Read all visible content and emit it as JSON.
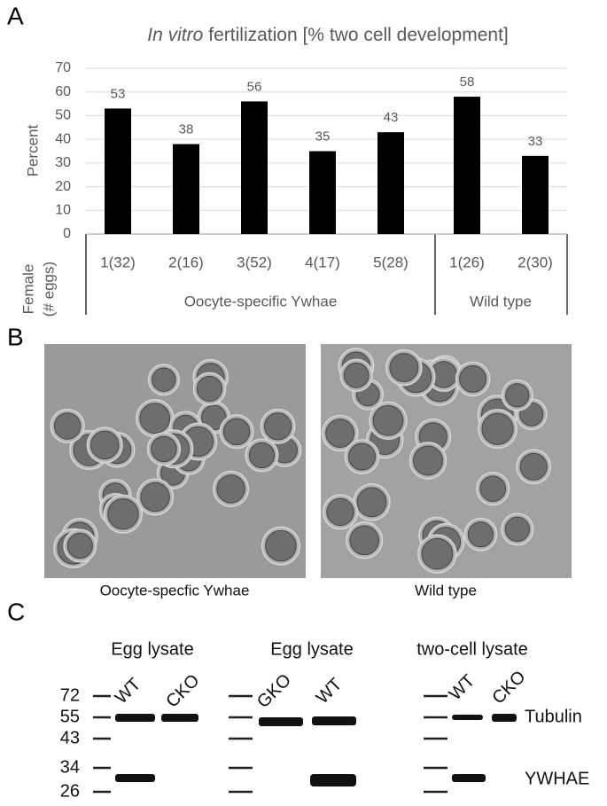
{
  "panel_labels": [
    "A",
    "B",
    "C"
  ],
  "chart_data": {
    "type": "bar",
    "title": {
      "italic": "In vitro",
      "text": "fertilization [% two cell development]"
    },
    "ylabel": "Percent",
    "xlabel": "Female",
    "xlabel_unit": "(# eggs)",
    "categories": [
      "1(32)",
      "2(16)",
      "3(52)",
      "4(17)",
      "5(28)",
      "1(26)",
      "2(30)"
    ],
    "groups": [
      "Oocyte-specific Ywhae",
      "Wild type"
    ],
    "values": [
      53,
      38,
      56,
      35,
      43,
      58,
      33
    ],
    "color": "#000000",
    "ylim": [
      0,
      70
    ],
    "yticks": [
      0,
      10,
      20,
      30,
      40,
      50,
      60,
      70
    ],
    "grid": true
  },
  "images": [
    {
      "caption": "Oocyte-specfic Ywhae"
    },
    {
      "caption": "Wild type"
    }
  ],
  "blot": {
    "panels": [
      {
        "title": "Egg lysate",
        "lanes": [
          "WT",
          "CKO"
        ]
      },
      {
        "title": "Egg lysate",
        "lanes": [
          "GKO",
          "WT"
        ]
      },
      {
        "title": "two-cell lysate",
        "lanes": [
          "WT",
          "CKO"
        ]
      }
    ],
    "markers": [
      72,
      55,
      43,
      34,
      26
    ],
    "bands": [
      "Tubulin",
      "YWHAE"
    ]
  }
}
